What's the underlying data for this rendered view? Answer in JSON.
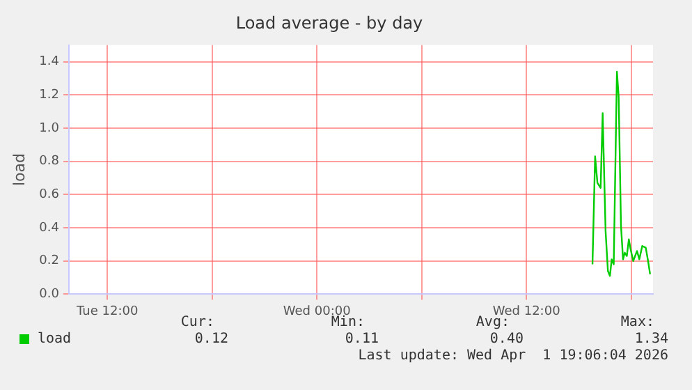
{
  "chart_data": {
    "type": "line",
    "title": "Load average - by day",
    "ylabel": "load",
    "x": [
      "2026-04-01T15:47",
      "2026-04-01T15:56",
      "2026-04-01T16:04",
      "2026-04-01T16:15",
      "2026-04-01T16:22",
      "2026-04-01T16:32",
      "2026-04-01T16:40",
      "2026-04-01T16:47",
      "2026-04-01T16:53",
      "2026-04-01T17:00",
      "2026-04-01T17:11",
      "2026-04-01T17:17",
      "2026-04-01T17:25",
      "2026-04-01T17:32",
      "2026-04-01T17:38",
      "2026-04-01T17:45",
      "2026-04-01T17:52",
      "2026-04-01T17:58",
      "2026-04-01T18:07",
      "2026-04-01T18:20",
      "2026-04-01T18:28",
      "2026-04-01T18:38",
      "2026-04-01T18:50",
      "2026-04-01T18:58",
      "2026-04-01T19:05"
    ],
    "series": [
      {
        "name": "load",
        "color": "#00cc00",
        "values": [
          0.18,
          0.83,
          0.67,
          0.64,
          1.09,
          0.38,
          0.14,
          0.11,
          0.21,
          0.18,
          1.34,
          1.19,
          0.41,
          0.21,
          0.25,
          0.23,
          0.33,
          0.27,
          0.2,
          0.26,
          0.21,
          0.29,
          0.28,
          0.2,
          0.12
        ]
      }
    ],
    "xlim": [
      "2026-03-31T09:48",
      "2026-04-01T19:15"
    ],
    "xticks": [
      {
        "value": "2026-03-31T12:00",
        "label": "Tue 12:00"
      },
      {
        "value": "2026-03-31T18:00",
        "label": null
      },
      {
        "value": "2026-04-01T00:00",
        "label": "Wed 00:00"
      },
      {
        "value": "2026-04-01T06:00",
        "label": null
      },
      {
        "value": "2026-04-01T12:00",
        "label": "Wed 12:00"
      },
      {
        "value": "2026-04-01T18:00",
        "label": null
      }
    ],
    "ylim": [
      0,
      1.5
    ],
    "yticks": [
      {
        "value": 0,
        "label": "0.0"
      },
      {
        "value": 0.2,
        "label": "0.2"
      },
      {
        "value": 0.4,
        "label": "0.4"
      },
      {
        "value": 0.6,
        "label": "0.6"
      },
      {
        "value": 0.8,
        "label": "0.8"
      },
      {
        "value": 1.0,
        "label": "1.0"
      },
      {
        "value": 1.2,
        "label": "1.2"
      },
      {
        "value": 1.4,
        "label": "1.4"
      }
    ],
    "grid": true,
    "legend": "bottom",
    "marker": "none",
    "line_style": "solid",
    "annotations": [
      "Cur:",
      "Min:",
      "Avg:",
      "Max:",
      "0.12",
      "0.11",
      "0.40",
      "1.34",
      "Last update: Wed Apr  1 19:06:04 2026"
    ]
  }
}
